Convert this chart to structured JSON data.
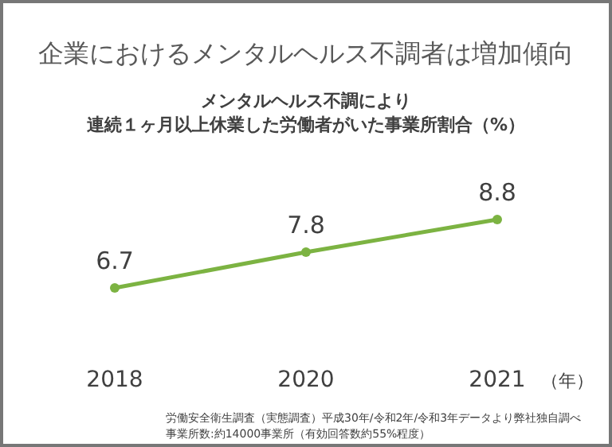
{
  "chart_data": {
    "type": "line",
    "title": "企業におけるメンタルヘルス不調者は増加傾向",
    "subtitle": [
      "メンタルヘルス不調により",
      "連続１ヶ月以上休業した労働者がいた事業所割合（%）"
    ],
    "xlabel": "（年）",
    "categories": [
      "2018",
      "2020",
      "2021"
    ],
    "series": [
      {
        "color": "#7cb342",
        "values": [
          6.7,
          7.8,
          8.8
        ]
      }
    ],
    "data_labels": true,
    "marker": "circle",
    "grid": false,
    "annotations": [
      "労働安全衛生調査（実態調査）平成30年/令和2年/令和3年データより弊社独自調べ",
      "事業所数:約14000事業所（有効回答数約55%程度）"
    ]
  }
}
